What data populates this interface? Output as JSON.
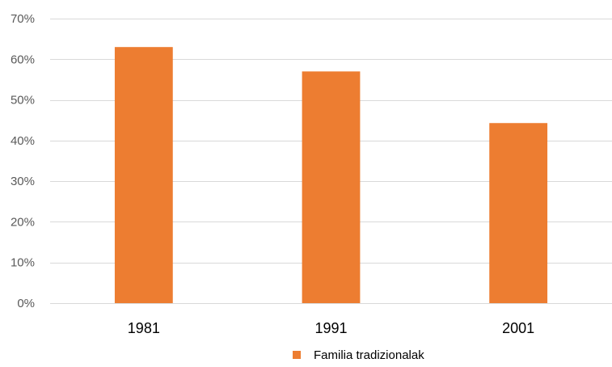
{
  "chart_data": {
    "type": "bar",
    "categories": [
      "1981",
      "1991",
      "2001"
    ],
    "series": [
      {
        "name": "Familia tradizionalak",
        "values": [
          63,
          57,
          44.3
        ],
        "color": "#ed7d31"
      }
    ],
    "ylim": [
      0,
      70
    ],
    "yticks": [
      0,
      10,
      20,
      30,
      40,
      50,
      60,
      70
    ],
    "ytick_labels": [
      "0%",
      "10%",
      "20%",
      "30%",
      "40%",
      "50%",
      "60%",
      "70%"
    ],
    "y_unit": "%",
    "grid": true,
    "legend": {
      "position": "bottom"
    },
    "title": "",
    "xlabel": "",
    "ylabel": ""
  }
}
